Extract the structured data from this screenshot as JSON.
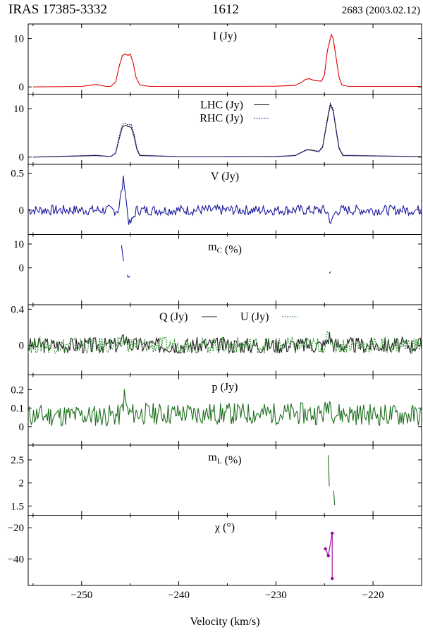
{
  "header": {
    "source": "IRAS 17385-3332",
    "line": "1612",
    "observation": "2683 (2003.02.12)"
  },
  "chart_data": {
    "type": "line",
    "xlabel": "Velocity (km/s)",
    "xlim": [
      -255.5,
      -215.0
    ],
    "xticks": [
      -250,
      -240,
      -230,
      -220
    ],
    "panels": [
      {
        "id": "I",
        "ylim": [
          -1.5,
          13
        ],
        "yticks": [
          0,
          10
        ],
        "label_parts": [
          {
            "t": "I (Jy)"
          }
        ],
        "series": [
          {
            "name": "I (Jy)",
            "color": "#e00000",
            "style": "solid",
            "points": [
              [
                -255,
                0
              ],
              [
                -250,
                0.1
              ],
              [
                -248.5,
                0.5
              ],
              [
                -247.5,
                0.1
              ],
              [
                -247,
                0.1
              ],
              [
                -246.5,
                1.0
              ],
              [
                -246.1,
                4.5
              ],
              [
                -245.8,
                6.5
              ],
              [
                -245.5,
                6.8
              ],
              [
                -245.2,
                6.5
              ],
              [
                -245.0,
                6.8
              ],
              [
                -244.7,
                5.0
              ],
              [
                -244.4,
                2.0
              ],
              [
                -244.0,
                0.4
              ],
              [
                -243,
                0.1
              ],
              [
                -240,
                0.1
              ],
              [
                -235,
                0.1
              ],
              [
                -230,
                0.15
              ],
              [
                -228,
                0.3
              ],
              [
                -227.3,
                1.0
              ],
              [
                -227,
                1.5
              ],
              [
                -226.6,
                1.7
              ],
              [
                -226,
                1.3
              ],
              [
                -225.3,
                1.2
              ],
              [
                -225,
                2.5
              ],
              [
                -224.7,
                7.5
              ],
              [
                -224.3,
                10.8
              ],
              [
                -224.1,
                10.0
              ],
              [
                -223.8,
                6.0
              ],
              [
                -223.5,
                2.0
              ],
              [
                -223.2,
                0.4
              ],
              [
                -222.5,
                0.1
              ],
              [
                -215,
                0.1
              ]
            ]
          }
        ]
      },
      {
        "id": "LR",
        "ylim": [
          -1.5,
          13
        ],
        "yticks": [
          0,
          10
        ],
        "label_parts": [],
        "legend": [
          "LHC (Jy)",
          "RHC (Jy)"
        ],
        "series": [
          {
            "name": "LHC (Jy)",
            "color": "#222222",
            "style": "solid",
            "points": [
              [
                -255,
                0
              ],
              [
                -248.5,
                0.3
              ],
              [
                -247,
                0.1
              ],
              [
                -246.5,
                0.8
              ],
              [
                -246.1,
                4.0
              ],
              [
                -245.8,
                6.2
              ],
              [
                -245.5,
                6.6
              ],
              [
                -245.2,
                6.3
              ],
              [
                -244.9,
                6.2
              ],
              [
                -244.6,
                4.2
              ],
              [
                -244.3,
                1.5
              ],
              [
                -244.0,
                0.3
              ],
              [
                -240,
                0.1
              ],
              [
                -230,
                0.1
              ],
              [
                -228,
                0.3
              ],
              [
                -227.3,
                1.0
              ],
              [
                -226.8,
                1.5
              ],
              [
                -226.3,
                1.4
              ],
              [
                -225.6,
                1.1
              ],
              [
                -225.2,
                2.0
              ],
              [
                -224.8,
                6.5
              ],
              [
                -224.4,
                10.8
              ],
              [
                -224.1,
                9.5
              ],
              [
                -223.8,
                5.5
              ],
              [
                -223.5,
                1.8
              ],
              [
                -223.1,
                0.3
              ],
              [
                -215,
                0.1
              ]
            ]
          },
          {
            "name": "RHC (Jy)",
            "color": "#1a1aa0",
            "style": "dotted",
            "points": [
              [
                -255,
                0
              ],
              [
                -248.5,
                0.4
              ],
              [
                -247,
                0.1
              ],
              [
                -246.5,
                0.9
              ],
              [
                -246.1,
                4.6
              ],
              [
                -245.8,
                6.8
              ],
              [
                -245.5,
                7.0
              ],
              [
                -245.2,
                6.6
              ],
              [
                -244.9,
                6.8
              ],
              [
                -244.6,
                4.8
              ],
              [
                -244.3,
                1.8
              ],
              [
                -244.0,
                0.4
              ],
              [
                -240,
                0.1
              ],
              [
                -230,
                0.15
              ],
              [
                -228,
                0.35
              ],
              [
                -227.3,
                1.1
              ],
              [
                -226.8,
                1.6
              ],
              [
                -226.3,
                1.5
              ],
              [
                -225.6,
                1.2
              ],
              [
                -225.2,
                2.2
              ],
              [
                -224.8,
                7.0
              ],
              [
                -224.4,
                11.1
              ],
              [
                -224.1,
                9.9
              ],
              [
                -223.8,
                5.8
              ],
              [
                -223.5,
                2.0
              ],
              [
                -223.1,
                0.4
              ],
              [
                -215,
                0.1
              ]
            ]
          }
        ]
      },
      {
        "id": "V",
        "ylim": [
          -0.33,
          0.62
        ],
        "yticks": [
          0,
          0.5
        ],
        "noise": 0.07,
        "seed": 7,
        "label_parts": [
          {
            "t": "V (Jy)"
          }
        ],
        "series": [
          {
            "name": "V (Jy)",
            "color": "#1a1aa0",
            "style": "solid",
            "points": [
              [
                -255,
                0
              ],
              [
                -250,
                0
              ],
              [
                -246.2,
                0
              ],
              [
                -245.9,
                0.25
              ],
              [
                -245.65,
                0.45
              ],
              [
                -245.35,
                0.05
              ],
              [
                -245.1,
                -0.2
              ],
              [
                -244.8,
                -0.15
              ],
              [
                -244.4,
                0
              ],
              [
                -240,
                0
              ],
              [
                -235,
                0
              ],
              [
                -230,
                0
              ],
              [
                -225,
                0
              ],
              [
                -224.6,
                -0.05
              ],
              [
                -224.3,
                -0.2
              ],
              [
                -224.0,
                -0.05
              ],
              [
                -223.5,
                0
              ],
              [
                -220,
                0
              ],
              [
                -215,
                0
              ]
            ]
          }
        ]
      },
      {
        "id": "mC",
        "ylim": [
          -15.5,
          14
        ],
        "yticks": [
          0,
          10
        ],
        "label_parts": [
          {
            "t": "m"
          },
          {
            "t": "C",
            "sub": true
          },
          {
            "t": " (%)"
          }
        ],
        "series": [
          {
            "name": "mC-a",
            "color": "#1a1aa0",
            "style": "solid",
            "points": [
              [
                -245.9,
                9.5
              ],
              [
                -245.8,
                6.5
              ],
              [
                -245.7,
                2.8
              ]
            ]
          },
          {
            "name": "mC-b",
            "color": "#1a1aa0",
            "style": "solid",
            "points": [
              [
                -245.3,
                -3.0
              ],
              [
                -245.2,
                -4.0
              ],
              [
                -245.0,
                -3.5
              ]
            ]
          },
          {
            "name": "mC-c",
            "color": "#1a1aa0",
            "style": "solid",
            "points": [
              [
                -224.5,
                -2.3
              ],
              [
                -224.35,
                -1.6
              ]
            ]
          }
        ]
      },
      {
        "id": "QU",
        "ylim": [
          -0.33,
          0.45
        ],
        "yticks": [
          0,
          0.4
        ],
        "noise": 0.09,
        "seed": 3,
        "label_parts": [],
        "legend": [
          "Q (Jy)",
          "U (Jy)"
        ],
        "series": [
          {
            "name": "Q (Jy)",
            "color": "#222222",
            "style": "solid",
            "points": [
              [
                -255,
                0
              ],
              [
                -246,
                0
              ],
              [
                -245.5,
                0.1
              ],
              [
                -245,
                0
              ],
              [
                -225,
                0
              ],
              [
                -224.5,
                0.1
              ],
              [
                -224,
                0
              ],
              [
                -215,
                0
              ]
            ]
          },
          {
            "name": "U (Jy)",
            "color": "#1f8a1f",
            "style": "dotted",
            "points": [
              [
                -255,
                0
              ],
              [
                -246,
                0
              ],
              [
                -245.5,
                0.05
              ],
              [
                -245,
                0
              ],
              [
                -225,
                0
              ],
              [
                -224.5,
                0.1
              ],
              [
                -224,
                0
              ],
              [
                -215,
                0
              ]
            ]
          }
        ]
      },
      {
        "id": "p",
        "ylim": [
          -0.1,
          0.28
        ],
        "yticks": [
          0,
          0.1,
          0.2
        ],
        "noise": 0.06,
        "seed": 11,
        "label_parts": [
          {
            "t": "p (Jy)"
          }
        ],
        "series": [
          {
            "name": "p (Jy)",
            "color": "#1f6f1f",
            "style": "solid",
            "points": [
              [
                -255,
                0.06
              ],
              [
                -246,
                0.06
              ],
              [
                -245.6,
                0.16
              ],
              [
                -245.2,
                0.07
              ],
              [
                -225,
                0.07
              ],
              [
                -224.5,
                0.14
              ],
              [
                -224,
                0.07
              ],
              [
                -215,
                0.06
              ]
            ]
          }
        ]
      },
      {
        "id": "mL",
        "ylim": [
          1.3,
          2.82
        ],
        "yticks": [
          1.5,
          2,
          2.5
        ],
        "label_parts": [
          {
            "t": "m"
          },
          {
            "t": "L",
            "sub": true
          },
          {
            "t": " (%)"
          }
        ],
        "series": [
          {
            "name": "mL-a",
            "color": "#1f6f1f",
            "style": "solid",
            "points": [
              [
                -224.6,
                2.6
              ],
              [
                -224.5,
                1.93
              ]
            ]
          },
          {
            "name": "mL-b",
            "color": "#1f6f1f",
            "style": "solid",
            "points": [
              [
                -224.05,
                1.83
              ],
              [
                -223.95,
                1.52
              ]
            ]
          }
        ]
      },
      {
        "id": "chi",
        "ylim": [
          -57,
          -12
        ],
        "yticks": [
          -40,
          -20
        ],
        "label_parts": [
          {
            "t": "χ (°)"
          }
        ],
        "series": [
          {
            "name": "chi",
            "color": "#a000a0",
            "style": "solid",
            "markers": true,
            "points": [
              [
                -224.9,
                -33.5
              ],
              [
                -224.6,
                -38.0
              ],
              [
                -224.2,
                -23.5
              ],
              [
                -224.2,
                -52.5
              ]
            ]
          }
        ]
      }
    ]
  }
}
